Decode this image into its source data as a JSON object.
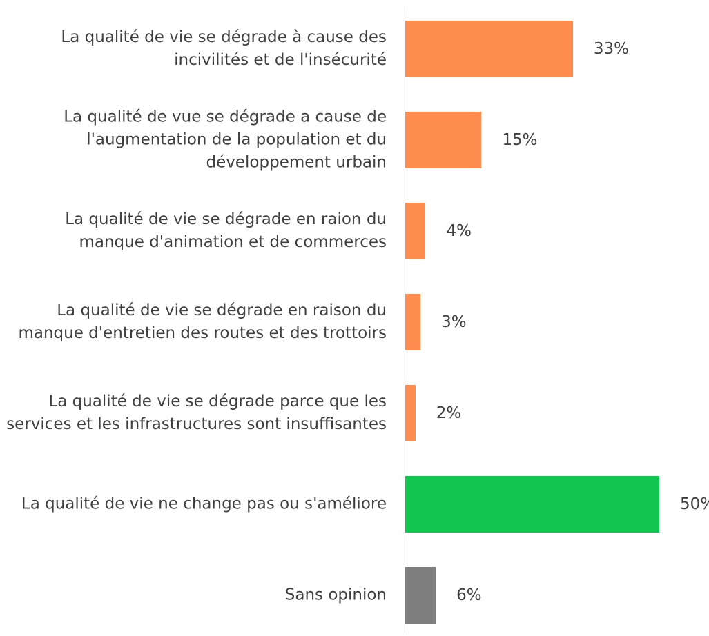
{
  "chart_data": {
    "type": "bar",
    "orientation": "horizontal",
    "categories": [
      "La qualité de vie se dégrade à cause des incivilités et de l'insécurité",
      "La qualité de vue se dégrade a cause de l'augmentation de la population et du développement urbain",
      "La qualité de vie se dégrade en raion du manque  d'animation et de commerces",
      "La qualité de vie se dégrade en raison du manque d'entretien des routes et des trottoirs",
      "La qualité de vie se dégrade parce que les services et les infrastructures sont insuffisantes",
      "La qualité de vie ne change pas ou s'améliore",
      "Sans opinion"
    ],
    "values": [
      33,
      15,
      4,
      3,
      2,
      50,
      6
    ],
    "value_labels": [
      "33%",
      "15%",
      "4%",
      "3%",
      "2%",
      "50%",
      "6%"
    ],
    "colors": [
      "#ff8c4f",
      "#ff8c4f",
      "#ff8c4f",
      "#ff8c4f",
      "#ff8c4f",
      "#12c551",
      "#7f7f7f"
    ]
  }
}
